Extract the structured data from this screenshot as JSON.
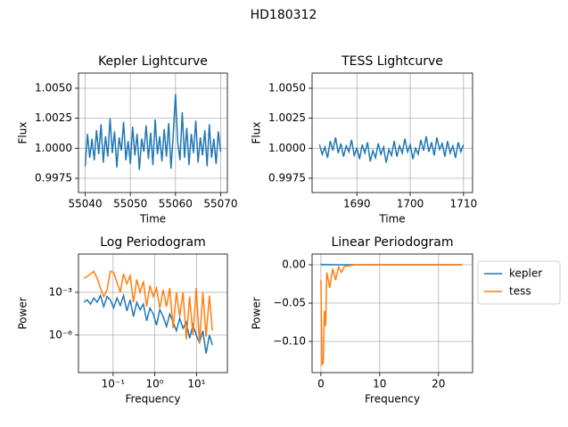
{
  "title": "HD180312",
  "chart_data": [
    {
      "type": "line",
      "title": "Kepler Lightcurve",
      "x_label": "Time",
      "y_label": "Flux",
      "grid": true,
      "x": [
        55040,
        55040.5,
        55041,
        55041.5,
        55042,
        55042.5,
        55043,
        55043.5,
        55044,
        55044.5,
        55045,
        55045.5,
        55046,
        55046.5,
        55047,
        55047.5,
        55048,
        55048.5,
        55049,
        55049.5,
        55050,
        55050.5,
        55051,
        55051.5,
        55052,
        55052.5,
        55053,
        55053.5,
        55054,
        55054.5,
        55055,
        55055.5,
        55056,
        55056.5,
        55057,
        55057.5,
        55058,
        55058.5,
        55059,
        55059.5,
        55060,
        55060.5,
        55061,
        55061.5,
        55062,
        55062.5,
        55063,
        55063.5,
        55064,
        55064.5,
        55065,
        55065.5,
        55066,
        55066.5,
        55067,
        55067.5,
        55068,
        55068.5,
        55069,
        55069.5,
        55070
      ],
      "series": [
        {
          "color": "#1f77b4",
          "values": [
            0.9985,
            1.0012,
            0.9992,
            1.0008,
            0.999,
            1.0015,
            0.9995,
            1.002,
            0.9988,
            1.001,
            0.9993,
            1.0025,
            0.9996,
            1.0014,
            0.9984,
            1.0009,
            0.9998,
            1.0022,
            0.999,
            1.0006,
            0.9987,
            1.0018,
            0.9994,
            1.0012,
            0.9982,
            1.0008,
            0.9997,
            1.0019,
            0.9991,
            1.0013,
            0.9986,
            1.0024,
            0.9995,
            1.001,
            0.9989,
            1.0016,
            0.9993,
            1.0021,
            0.9983,
            1.0011,
            1.0045,
            1.0005,
            0.999,
            1.003,
            0.9992,
            1.0017,
            0.9986,
            1.0012,
            0.9996,
            1.0023,
            0.9988,
            1.0009,
            0.9994,
            1.0015,
            0.9985,
            1.002,
            0.9992,
            1.0008,
            0.9987,
            1.0014,
            0.9997
          ]
        }
      ],
      "xlim": [
        55038.5,
        55071.5
      ],
      "xticks": [
        55040,
        55050,
        55060,
        55070
      ],
      "ylim": [
        0.99631,
        1.00626
      ],
      "yticks": [
        {
          "value": 0.9975,
          "label": "0.9975"
        },
        {
          "value": 1,
          "label": "1.0000"
        },
        {
          "value": 1.0025,
          "label": "1.0025"
        },
        {
          "value": 1.005,
          "label": "1.0050"
        }
      ]
    },
    {
      "type": "line",
      "title": "TESS Lightcurve",
      "x_label": "Time",
      "y_label": "Flux",
      "grid": true,
      "x": [
        1683,
        1683.5,
        1684,
        1684.5,
        1685,
        1685.5,
        1686,
        1686.5,
        1687,
        1687.5,
        1688,
        1688.5,
        1689,
        1689.5,
        1690,
        1690.5,
        1691,
        1691.5,
        1692,
        1692.5,
        1693,
        1693.5,
        1694,
        1694.5,
        1695,
        1695.5,
        1696,
        1696.5,
        1697,
        1697.5,
        1698,
        1698.5,
        1699,
        1699.5,
        1700,
        1700.5,
        1701,
        1701.5,
        1702,
        1702.5,
        1703,
        1703.5,
        1704,
        1704.5,
        1705,
        1705.5,
        1706,
        1706.5,
        1707,
        1707.5,
        1708,
        1708.5,
        1709,
        1709.5,
        1710
      ],
      "series": [
        {
          "color": "#1f77b4",
          "values": [
            1.0003,
            0.9995,
            1.0001,
            0.9992,
            1.0006,
            0.9998,
            1.0009,
            0.9996,
            1.0004,
            0.9993,
            1.0002,
            0.9997,
            1.0007,
            0.9994,
            1.0,
            0.9991,
            1.0003,
            0.9996,
            1.0005,
            0.9989,
            0.9998,
            0.9992,
            1.0004,
            0.9995,
            1.0001,
            0.9988,
            0.9999,
            0.9994,
            1.0006,
            0.9993,
            1.0002,
            0.9996,
            1.0008,
            0.9997,
            1.0003,
            0.9991,
            1.0,
            0.9995,
            1.0007,
            0.9998,
            1.001,
            0.9997,
            1.0005,
            0.9994,
            1.0009,
            0.9999,
            1.0004,
            0.9993,
            1.0006,
            0.9996,
            1.0002,
            0.9992,
            1.0005,
            0.9997,
            1.0003
          ]
        }
      ],
      "xlim": [
        1681.6,
        1711.7
      ],
      "xticks": [
        1690,
        1700,
        1710
      ],
      "ylim": [
        0.99631,
        1.00626
      ],
      "yticks": [
        {
          "value": 0.9975,
          "label": "0.9975"
        },
        {
          "value": 1,
          "label": "1.0000"
        },
        {
          "value": 1.0025,
          "label": "1.0025"
        },
        {
          "value": 1.005,
          "label": "1.0050"
        }
      ]
    },
    {
      "type": "line",
      "title": "Log Periodogram",
      "x_label": "Frequency",
      "y_label": "Power",
      "grid": true,
      "xscale": "log",
      "yscale": "log",
      "x": [
        0.02,
        0.024,
        0.0288,
        0.0346,
        0.0415,
        0.0498,
        0.0597,
        0.0717,
        0.086,
        0.103,
        0.124,
        0.149,
        0.178,
        0.214,
        0.257,
        0.308,
        0.37,
        0.444,
        0.532,
        0.639,
        0.767,
        0.92,
        1.1,
        1.32,
        1.59,
        1.91,
        2.29,
        2.75,
        3.3,
        3.96,
        4.75,
        5.7,
        6.84,
        8.21,
        9.85,
        11.8,
        14.2,
        17,
        20.4,
        24
      ],
      "series": [
        {
          "name": "kepler",
          "color": "#1f77b4",
          "values": [
            0.0002,
            0.0003,
            0.00015,
            0.0004,
            0.0002,
            0.0006,
            0.0001,
            0.0005,
            0.0003,
            8e-05,
            0.0004,
            0.00012,
            0.0006,
            5e-05,
            0.0003,
            2e-05,
            0.0002,
            6e-05,
            0.00015,
            1e-05,
            8e-05,
            3e-05,
            5e-06,
            6e-05,
            2e-05,
            4e-06,
            3e-05,
            8e-06,
            2e-06,
            1.5e-05,
            3e-06,
            8e-06,
            6e-07,
            5e-06,
            1e-06,
            3e-07,
            2e-06,
            5e-08,
            1e-06,
            2e-07
          ]
        },
        {
          "name": "tess",
          "color": "#ff7f0e",
          "values": [
            0.01,
            0.013,
            0.02,
            0.03,
            0.01,
            0.002,
            0.0005,
            0.0015,
            0.03,
            0.025,
            0.005,
            0.001,
            0.02,
            0.004,
            0.015,
            0.0002,
            0.008,
            0.001,
            0.006,
            0.0001,
            0.003,
            0.0005,
            0.002,
            8e-05,
            0.0015,
            0.0001,
            0.002,
            3e-06,
            0.001,
            2e-05,
            0.001,
            5e-07,
            0.0005,
            1e-06,
            0.002,
            3e-07,
            0.001,
            8e-07,
            0.0006,
            2e-06
          ]
        }
      ],
      "xlim": [
        0.0148,
        55
      ],
      "xticks": [
        {
          "value": 0.1,
          "label": "10⁻¹"
        },
        {
          "value": 1,
          "label": "10⁰"
        },
        {
          "value": 10,
          "label": "10¹"
        }
      ],
      "ylim": [
        2.3e-09,
        0.49
      ],
      "yticks": [
        {
          "value": 1e-06,
          "label": "10⁻⁶"
        },
        {
          "value": 0.001,
          "label": "10⁻³"
        }
      ]
    },
    {
      "type": "line",
      "title": "Linear Periodogram",
      "x_label": "Frequency",
      "y_label": "Power",
      "grid": true,
      "legend": "outside right",
      "x": [
        0,
        0.2,
        0.4,
        0.6,
        0.8,
        1,
        1.5,
        2,
        2.5,
        3,
        3.5,
        4,
        5,
        6,
        8,
        10,
        12,
        14,
        16,
        18,
        20,
        22,
        24
      ],
      "series": [
        {
          "name": "kepler",
          "color": "#1f77b4",
          "values": [
            0.001,
            0,
            0.0005,
            0,
            0.0003,
            0,
            0.0002,
            0,
            0.0001,
            0,
            0,
            0,
            0,
            0,
            0,
            0,
            0,
            0,
            0,
            0,
            0,
            0,
            0
          ]
        },
        {
          "name": "tess",
          "color": "#ff7f0e",
          "values": [
            -0.02,
            -0.13,
            -0.128,
            -0.06,
            -0.08,
            -0.01,
            -0.03,
            -0.005,
            -0.02,
            -0.003,
            -0.01,
            -0.002,
            -0.001,
            0,
            0,
            0,
            0,
            0,
            0,
            0,
            0,
            0,
            0
          ]
        }
      ],
      "xlim": [
        -1.5,
        25.8
      ],
      "xticks": [
        0,
        10,
        20
      ],
      "ylim": [
        -0.1407,
        0.014
      ],
      "yticks": [
        {
          "value": -0.1,
          "label": "−0.10"
        },
        {
          "value": -0.05,
          "label": "−0.05"
        },
        {
          "value": 0,
          "label": "0.00"
        }
      ]
    }
  ]
}
